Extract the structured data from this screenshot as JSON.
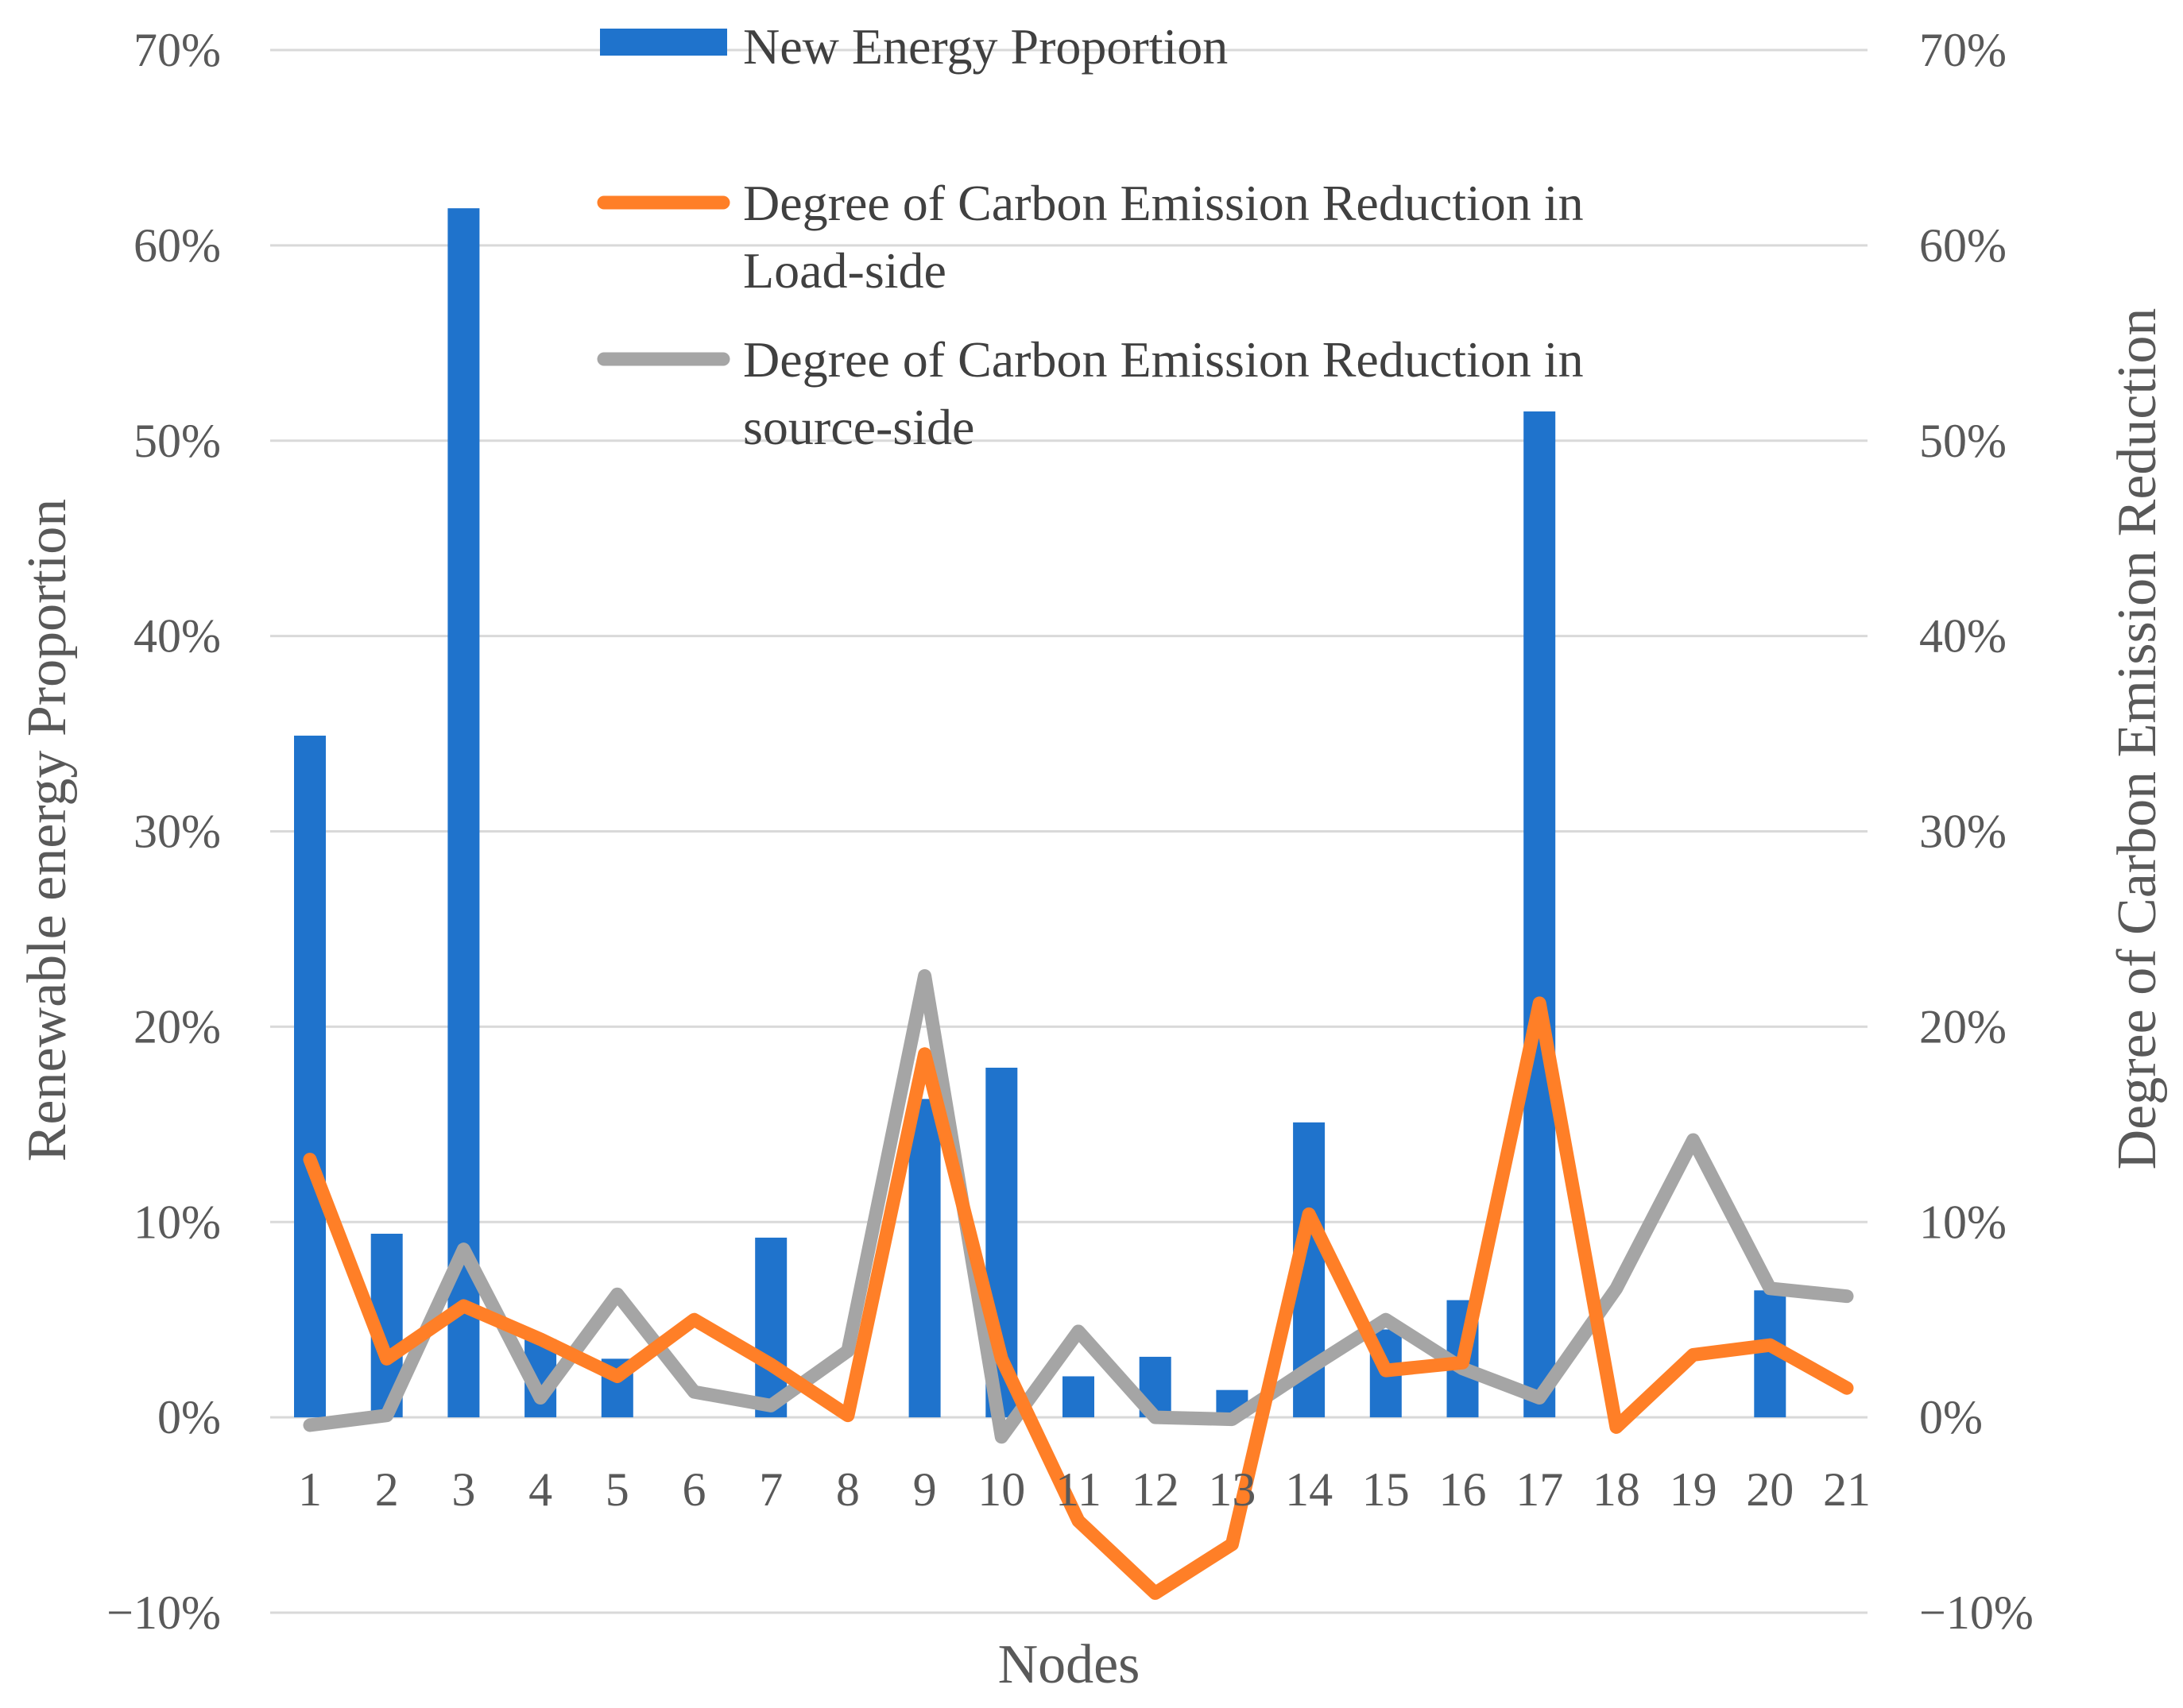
{
  "colors": {
    "bar": "#1F73CC",
    "load_line": "#FF7F27",
    "source_line": "#A5A5A5",
    "grid": "#D9D9D9",
    "text": "#595959"
  },
  "chart_data": {
    "type": "bar",
    "title": "",
    "xlabel": "Nodes",
    "ylabel": "Renewable energy Proportion",
    "ylabel_right": "Degree of Carbon Emission Reduction",
    "ylim": [
      -0.1,
      0.7
    ],
    "ylim_right": [
      -0.1,
      0.7
    ],
    "yticks": [
      "−10%",
      "0%",
      "10%",
      "20%",
      "30%",
      "40%",
      "50%",
      "60%",
      "70%"
    ],
    "yticks_right": [
      "−10%",
      "0%",
      "10%",
      "20%",
      "30%",
      "40%",
      "50%",
      "60%",
      "70%"
    ],
    "categories": [
      "1",
      "2",
      "3",
      "4",
      "5",
      "6",
      "7",
      "8",
      "9",
      "10",
      "11",
      "12",
      "13",
      "14",
      "15",
      "16",
      "17",
      "18",
      "19",
      "20",
      "21"
    ],
    "legend_position": "top-center",
    "series": [
      {
        "name": "New Energy Proportion",
        "legend_lines": [
          "New Energy Proportion"
        ],
        "type": "bar",
        "axis": "left",
        "values": [
          0.349,
          0.094,
          0.619,
          0.04,
          0.03,
          0.0,
          0.092,
          0.0,
          0.163,
          0.179,
          0.021,
          0.031,
          0.014,
          0.151,
          0.045,
          0.06,
          0.515,
          0.0,
          0.0,
          0.065,
          0.0
        ]
      },
      {
        "name": "Degree of Carbon Emission Reduction in Load-side",
        "legend_lines": [
          "Degree of Carbon Emission Reduction in",
          "Load-side"
        ],
        "type": "line",
        "axis": "right",
        "values": [
          0.132,
          0.03,
          0.057,
          0.04,
          0.021,
          0.05,
          0.027,
          0.001,
          0.186,
          0.03,
          -0.053,
          -0.09,
          -0.065,
          0.104,
          0.024,
          0.028,
          0.212,
          -0.005,
          0.032,
          0.037,
          0.015
        ]
      },
      {
        "name": "Degree of Carbon Emission Reduction in source-side",
        "legend_lines": [
          "Degree of Carbon Emission Reduction in",
          "source-side"
        ],
        "type": "line",
        "axis": "right",
        "values": [
          -0.004,
          0.001,
          0.086,
          0.01,
          0.063,
          0.013,
          0.006,
          0.034,
          0.226,
          -0.01,
          0.044,
          0.0,
          -0.001,
          0.025,
          0.05,
          0.025,
          0.01,
          0.066,
          0.142,
          0.066,
          0.062
        ]
      }
    ]
  }
}
